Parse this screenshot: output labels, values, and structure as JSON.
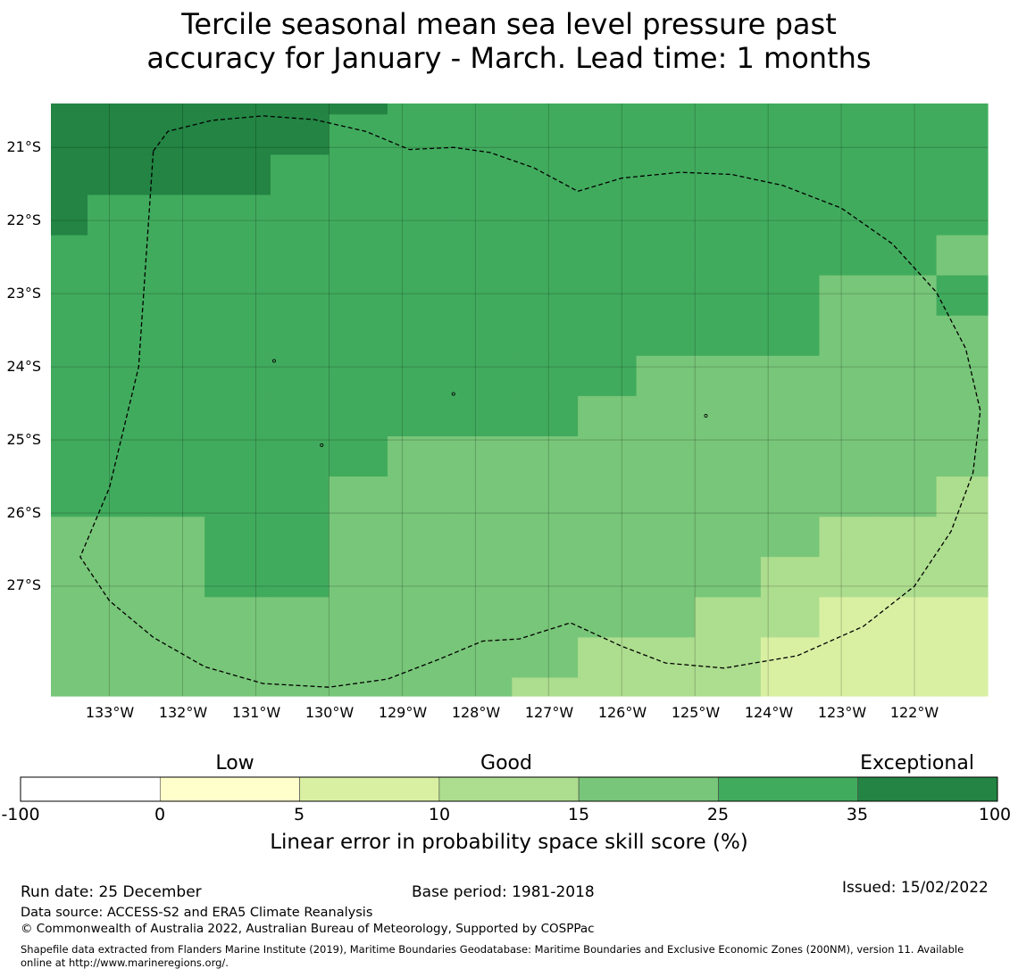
{
  "title_line1": "Tercile seasonal mean sea level pressure past",
  "title_line2": "accuracy for January - March. Lead time: 1 months",
  "map": {
    "lon_labels": [
      "133°W",
      "132°W",
      "131°W",
      "130°W",
      "129°W",
      "128°W",
      "127°W",
      "126°W",
      "125°W",
      "124°W",
      "123°W",
      "122°W"
    ],
    "lat_labels": [
      "21°S",
      "22°S",
      "23°S",
      "24°S",
      "25°S",
      "26°S",
      "27°S"
    ],
    "grid_lons": [
      -133,
      -132,
      -131,
      -130,
      -129,
      -128,
      -127,
      -126,
      -125,
      -124,
      -123,
      -122
    ],
    "grid_lats": [
      -21,
      -22,
      -23,
      -24,
      -25,
      -26,
      -27
    ],
    "extent": {
      "lon_min": -133.8,
      "lon_max": -121.0,
      "lat_min": -28.5,
      "lat_max": -20.4
    },
    "skill_grid": {
      "lon_edges": [
        -133.8,
        -133.3,
        -132.5,
        -131.7,
        -130.8,
        -130.0,
        -129.2,
        -128.3,
        -127.5,
        -126.6,
        -125.8,
        -125.0,
        -124.1,
        -123.3,
        -122.5,
        -121.7,
        -121.0
      ],
      "lat_edges": [
        -20.4,
        -20.55,
        -21.1,
        -21.65,
        -22.2,
        -22.75,
        -23.3,
        -23.85,
        -24.4,
        -24.95,
        -25.5,
        -26.05,
        -26.6,
        -27.15,
        -27.7,
        -28.25,
        -28.5
      ],
      "classes": [
        [
          6,
          6,
          6,
          6,
          6,
          6,
          5,
          5,
          5,
          5,
          5,
          5,
          5,
          5,
          5,
          5
        ],
        [
          6,
          6,
          6,
          6,
          6,
          5,
          5,
          5,
          5,
          5,
          5,
          5,
          5,
          5,
          5,
          5
        ],
        [
          6,
          6,
          6,
          6,
          5,
          5,
          5,
          5,
          5,
          5,
          5,
          5,
          5,
          5,
          5,
          5
        ],
        [
          6,
          5,
          5,
          5,
          5,
          5,
          5,
          5,
          5,
          5,
          5,
          5,
          5,
          5,
          5,
          5
        ],
        [
          5,
          5,
          5,
          5,
          5,
          5,
          5,
          5,
          5,
          5,
          5,
          5,
          5,
          5,
          5,
          4
        ],
        [
          5,
          5,
          5,
          5,
          5,
          5,
          5,
          5,
          5,
          5,
          5,
          5,
          5,
          4,
          4,
          5
        ],
        [
          5,
          5,
          5,
          5,
          5,
          5,
          5,
          5,
          5,
          5,
          5,
          5,
          5,
          4,
          4,
          4
        ],
        [
          5,
          5,
          5,
          5,
          5,
          5,
          5,
          5,
          5,
          5,
          4,
          4,
          4,
          4,
          4,
          4
        ],
        [
          5,
          5,
          5,
          5,
          5,
          5,
          5,
          5,
          5,
          4,
          4,
          4,
          4,
          4,
          4,
          4
        ],
        [
          5,
          5,
          5,
          5,
          5,
          5,
          4,
          4,
          4,
          4,
          4,
          4,
          4,
          4,
          4,
          4
        ],
        [
          5,
          5,
          5,
          5,
          5,
          4,
          4,
          4,
          4,
          4,
          4,
          4,
          4,
          4,
          4,
          3
        ],
        [
          4,
          4,
          4,
          5,
          5,
          4,
          4,
          4,
          4,
          4,
          4,
          4,
          4,
          3,
          3,
          3
        ],
        [
          4,
          4,
          4,
          5,
          5,
          4,
          4,
          4,
          4,
          4,
          4,
          4,
          3,
          3,
          3,
          3
        ],
        [
          4,
          4,
          4,
          4,
          4,
          4,
          4,
          4,
          4,
          4,
          4,
          3,
          3,
          2,
          2,
          2
        ],
        [
          4,
          4,
          4,
          4,
          4,
          4,
          4,
          4,
          4,
          3,
          3,
          3,
          2,
          2,
          2,
          2
        ],
        [
          4,
          4,
          4,
          4,
          4,
          4,
          4,
          4,
          3,
          3,
          3,
          3,
          2,
          2,
          2,
          2
        ]
      ]
    },
    "eez_boundary_lonlat": [
      [
        -132.4,
        -21.05
      ],
      [
        -132.2,
        -20.78
      ],
      [
        -131.6,
        -20.63
      ],
      [
        -130.9,
        -20.57
      ],
      [
        -130.2,
        -20.62
      ],
      [
        -129.5,
        -20.78
      ],
      [
        -128.9,
        -21.03
      ],
      [
        -128.3,
        -21.0
      ],
      [
        -127.8,
        -21.07
      ],
      [
        -127.2,
        -21.28
      ],
      [
        -126.6,
        -21.6
      ],
      [
        -126.0,
        -21.42
      ],
      [
        -125.2,
        -21.34
      ],
      [
        -124.5,
        -21.37
      ],
      [
        -123.8,
        -21.52
      ],
      [
        -123.0,
        -21.83
      ],
      [
        -122.3,
        -22.32
      ],
      [
        -121.7,
        -22.98
      ],
      [
        -121.3,
        -23.75
      ],
      [
        -121.1,
        -24.6
      ],
      [
        -121.2,
        -25.45
      ],
      [
        -121.5,
        -26.25
      ],
      [
        -122.0,
        -27.0
      ],
      [
        -122.7,
        -27.55
      ],
      [
        -123.6,
        -27.95
      ],
      [
        -124.6,
        -28.12
      ],
      [
        -125.4,
        -28.05
      ],
      [
        -126.0,
        -27.82
      ],
      [
        -126.7,
        -27.5
      ],
      [
        -127.4,
        -27.72
      ],
      [
        -127.9,
        -27.75
      ],
      [
        -128.5,
        -28.0
      ],
      [
        -129.2,
        -28.27
      ],
      [
        -130.0,
        -28.38
      ],
      [
        -130.9,
        -28.33
      ],
      [
        -131.7,
        -28.1
      ],
      [
        -132.4,
        -27.7
      ],
      [
        -133.0,
        -27.2
      ],
      [
        -133.4,
        -26.6
      ],
      [
        -133.0,
        -25.65
      ],
      [
        -132.6,
        -24.0
      ],
      [
        -132.4,
        -21.05
      ]
    ],
    "islands_lonlat": [
      [
        -130.75,
        -23.92
      ],
      [
        -128.3,
        -24.37
      ],
      [
        -130.1,
        -25.07
      ],
      [
        -124.85,
        -24.67
      ]
    ]
  },
  "colorbar": {
    "categories": [
      {
        "label": "Low",
        "value": 2.5
      },
      {
        "label": "Good",
        "value": 12.5
      },
      {
        "label": "Exceptional",
        "value": 35
      }
    ],
    "ticks": [
      "-100",
      "0",
      "5",
      "10",
      "15",
      "25",
      "35",
      "100"
    ],
    "colors": [
      "#ffffff",
      "#ffffcc",
      "#d9f0a3",
      "#addd8e",
      "#78c679",
      "#41ab5d",
      "#238443"
    ],
    "label": "Linear error in probability space skill score (%)"
  },
  "footer": {
    "run_date": "Run date: 25 December",
    "base_period": "Base period: 1981-2018",
    "issued": "Issued: 15/02/2022",
    "data_source": "Data source: ACCESS-S2 and ERA5 Climate Reanalysis",
    "copyright": "© Commonwealth of Australia 2022, Australian Bureau of Meteorology, Supported by COSPPac",
    "shapefile_line1": "Shapefile data extracted from Flanders Marine Institute (2019), Maritime Boundaries Geodatabase: Maritime Boundaries and Exclusive Economic Zones (200NM), version 11. Available",
    "shapefile_line2": "online at http://www.marineregions.org/."
  }
}
